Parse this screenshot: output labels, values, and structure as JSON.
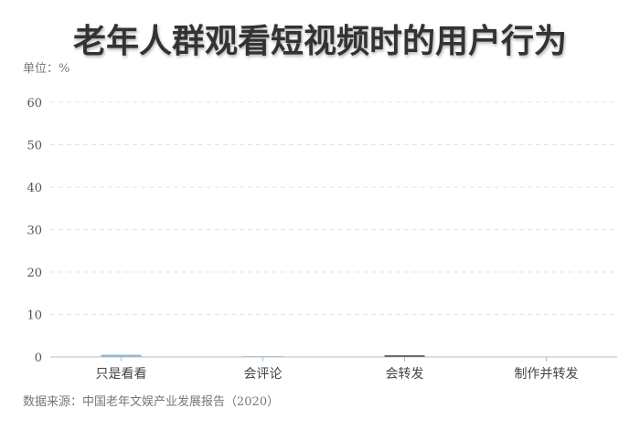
{
  "chart_data": {
    "type": "bar",
    "title": "老年人群观看短视频时的用户行为",
    "unit_label": "单位：%",
    "categories": [
      "只是看看",
      "会评论",
      "会转发",
      "制作并转发"
    ],
    "values": [
      0.5,
      0.2,
      0.4,
      0.2
    ],
    "colors": [
      "#8fb8d8",
      "#a9c9e0",
      "#666666",
      "#dddddd"
    ],
    "ylim": [
      0,
      60
    ],
    "yticks": [
      0,
      10,
      20,
      30,
      40,
      50,
      60
    ],
    "grid": true,
    "source": "数据来源：中国老年文娱产业发展报告（2020）"
  }
}
